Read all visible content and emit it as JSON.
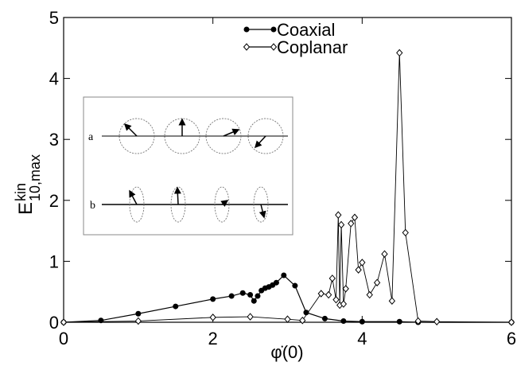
{
  "chart_data": {
    "type": "line",
    "xlabel": "φ̇(0)",
    "ylabel": {
      "main": "E",
      "sup": "kin",
      "sub": "10,max"
    },
    "xlim": [
      0,
      6
    ],
    "xticks": [
      0,
      2,
      4,
      6
    ],
    "ylim": [
      0,
      5
    ],
    "yticks": [
      0,
      1,
      2,
      3,
      4,
      5
    ],
    "legend": "top-center",
    "inset_labels": [
      "a",
      "b"
    ],
    "series": [
      {
        "name": "Coaxial",
        "color": "#000000",
        "marker": "circle",
        "x": [
          0,
          0.5,
          1.0,
          1.5,
          2.0,
          2.25,
          2.4,
          2.5,
          2.55,
          2.6,
          2.65,
          2.7,
          2.75,
          2.8,
          2.85,
          2.95,
          3.1,
          3.25,
          3.5,
          3.75,
          4.0,
          4.5,
          4.75,
          6.0
        ],
        "values": [
          0,
          0.03,
          0.14,
          0.26,
          0.38,
          0.43,
          0.48,
          0.45,
          0.35,
          0.43,
          0.52,
          0.56,
          0.58,
          0.61,
          0.65,
          0.77,
          0.6,
          0.16,
          0.06,
          0.02,
          0.01,
          0.01,
          0,
          0
        ]
      },
      {
        "name": "Coplanar",
        "color": "#000000",
        "marker": "diamond",
        "x": [
          0,
          1.0,
          2.0,
          2.5,
          3.0,
          3.2,
          3.45,
          3.55,
          3.6,
          3.65,
          3.68,
          3.7,
          3.72,
          3.75,
          3.78,
          3.85,
          3.9,
          3.95,
          4.0,
          4.1,
          4.2,
          4.3,
          4.4,
          4.5,
          4.58,
          4.75,
          5.0,
          6.0
        ],
        "values": [
          0,
          0.02,
          0.08,
          0.09,
          0.05,
          0.03,
          0.47,
          0.45,
          0.72,
          0.37,
          1.76,
          0.28,
          1.6,
          0.3,
          0.55,
          1.62,
          1.72,
          0.86,
          0.98,
          0.45,
          0.65,
          1.12,
          0.35,
          4.42,
          1.47,
          0.02,
          0.01,
          0
        ]
      }
    ]
  }
}
